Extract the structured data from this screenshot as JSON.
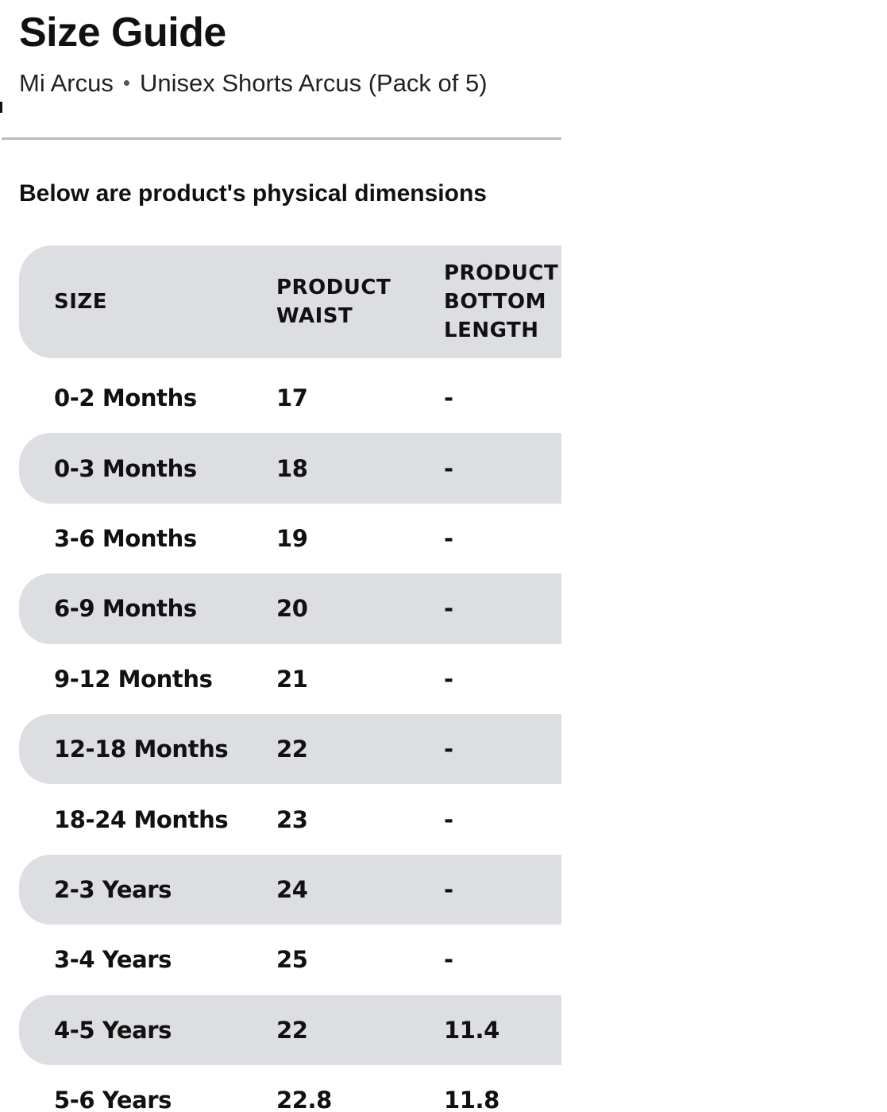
{
  "page": {
    "title": "Size Guide",
    "brand": "Mi Arcus",
    "separator": "•",
    "product_name": "Unisex Shorts Arcus (Pack of 5)",
    "intro": "Below are product's physical dimensions"
  },
  "table": {
    "headers": {
      "size": [
        "SIZE"
      ],
      "waist": [
        "PRODUCT",
        "WAIST"
      ],
      "bottom_length": [
        "PRODUCT",
        "BOTTOM",
        "LENGTH"
      ]
    },
    "rows": [
      {
        "size": "0-2 Months",
        "waist": "17",
        "bottom_length": "-"
      },
      {
        "size": "0-3 Months",
        "waist": "18",
        "bottom_length": "-"
      },
      {
        "size": "3-6 Months",
        "waist": "19",
        "bottom_length": "-"
      },
      {
        "size": "6-9 Months",
        "waist": "20",
        "bottom_length": "-"
      },
      {
        "size": "9-12 Months",
        "waist": "21",
        "bottom_length": "-"
      },
      {
        "size": "12-18 Months",
        "waist": "22",
        "bottom_length": "-"
      },
      {
        "size": "18-24 Months",
        "waist": "23",
        "bottom_length": "-"
      },
      {
        "size": "2-3 Years",
        "waist": "24",
        "bottom_length": "-"
      },
      {
        "size": "3-4 Years",
        "waist": "25",
        "bottom_length": "-"
      },
      {
        "size": "4-5 Years",
        "waist": "22",
        "bottom_length": "11.4"
      },
      {
        "size": "5-6 Years",
        "waist": "22.8",
        "bottom_length": "11.8"
      }
    ]
  },
  "colors": {
    "shaded_row": "#dcdee1",
    "divider": "#b9bcc1",
    "text": "#111111"
  }
}
